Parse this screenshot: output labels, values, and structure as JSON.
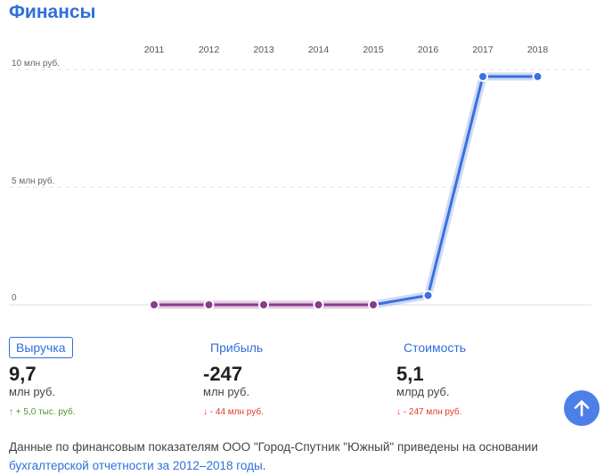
{
  "page": {
    "title": "Финансы"
  },
  "chart_data": {
    "type": "line",
    "x": [
      2011,
      2012,
      2013,
      2014,
      2015,
      2016,
      2017,
      2018
    ],
    "tick_labels_x": [
      "2011",
      "2012",
      "2013",
      "2014",
      "2015",
      "2016",
      "2017",
      "2018"
    ],
    "series": [
      {
        "values": [
          0,
          0,
          0,
          0,
          0,
          0.4,
          9.7,
          9.7
        ]
      }
    ],
    "yticks": [
      0,
      5,
      10
    ],
    "ytick_labels": [
      "0",
      "5 млн руб.",
      "10 млн руб."
    ],
    "ylim": [
      0,
      10
    ],
    "y_unit": "млн руб.",
    "grid": true,
    "colors": {
      "negative_segment": "#8a3a8a",
      "positive_segment": "#3d6fe0"
    }
  },
  "metrics": [
    {
      "label": "Выручка",
      "value": "9,7",
      "unit": "млн руб.",
      "arrow": "↑",
      "delta": "+ 5,0 тыс. руб.",
      "trend": "up",
      "active": true
    },
    {
      "label": "Прибыль",
      "value": "-247",
      "unit": "млн руб.",
      "arrow": "↓",
      "delta": "- 44 млн руб.",
      "trend": "down",
      "active": false
    },
    {
      "label": "Стоимость",
      "value": "5,1",
      "unit": "млрд руб.",
      "arrow": "↓",
      "delta": "- 247 млн руб.",
      "trend": "down",
      "active": false
    }
  ],
  "footer": {
    "text": "Данные по финансовым показателям ООО \"Город-Спутник \"Южный\" приведены на основании",
    "link": "бухгалтерской отчетности за 2012–2018 годы",
    "end": "."
  },
  "scroll_top": {
    "icon": "arrow-up-icon",
    "color": "#4d7fe8"
  }
}
